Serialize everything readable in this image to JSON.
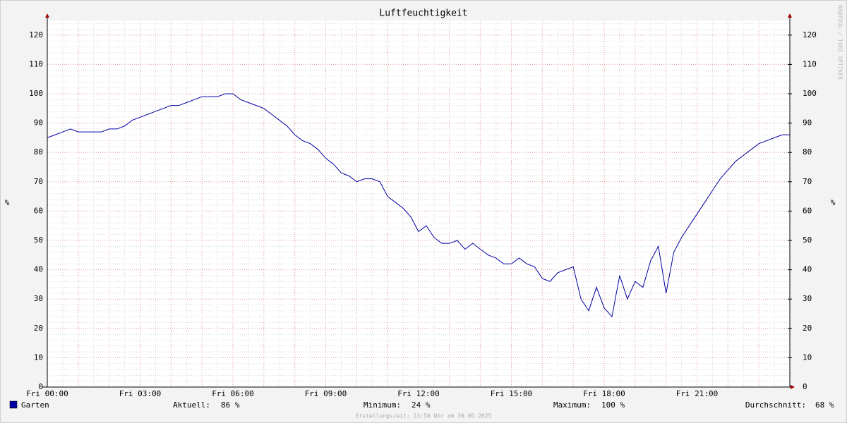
{
  "chart_data": {
    "type": "line",
    "title": "Luftfeuchtigkeit",
    "ylabel": "%",
    "y2label": "%",
    "watermark": "RRDTOOL / TOBI OETIKER",
    "footer": "Erstellungszeit: 23:58 Uhr am 30.05.2025",
    "xlim": [
      0,
      24
    ],
    "xticks": [
      {
        "value": 0,
        "label": "Fri 00:00"
      },
      {
        "value": 3,
        "label": "Fri 03:00"
      },
      {
        "value": 6,
        "label": "Fri 06:00"
      },
      {
        "value": 9,
        "label": "Fri 09:00"
      },
      {
        "value": 12,
        "label": "Fri 12:00"
      },
      {
        "value": 15,
        "label": "Fri 15:00"
      },
      {
        "value": 18,
        "label": "Fri 18:00"
      },
      {
        "value": 21,
        "label": "Fri 21:00"
      }
    ],
    "ylim": [
      0,
      125
    ],
    "yticks": [
      0,
      10,
      20,
      30,
      40,
      50,
      60,
      70,
      80,
      90,
      100,
      110,
      120
    ],
    "y2lim": [
      0,
      125
    ],
    "y2ticks": [
      0,
      10,
      20,
      30,
      40,
      50,
      60,
      70,
      80,
      90,
      100,
      110,
      120
    ],
    "grid": {
      "x_minor": 0.5,
      "x_major": 1,
      "y_minor": 2
    },
    "x": [
      0,
      0.25,
      0.5,
      0.75,
      1,
      1.25,
      1.5,
      1.75,
      2,
      2.25,
      2.5,
      2.75,
      3,
      3.25,
      3.5,
      3.75,
      4,
      4.25,
      4.5,
      4.75,
      5,
      5.25,
      5.5,
      5.75,
      6,
      6.25,
      6.5,
      6.75,
      7,
      7.25,
      7.5,
      7.75,
      8,
      8.25,
      8.5,
      8.75,
      9,
      9.25,
      9.5,
      9.75,
      10,
      10.25,
      10.5,
      10.75,
      11,
      11.25,
      11.5,
      11.75,
      12,
      12.25,
      12.5,
      12.75,
      13,
      13.25,
      13.5,
      13.75,
      14,
      14.25,
      14.5,
      14.75,
      15,
      15.25,
      15.5,
      15.75,
      16,
      16.25,
      16.5,
      16.75,
      17,
      17.25,
      17.5,
      17.75,
      18,
      18.25,
      18.5,
      18.75,
      19,
      19.25,
      19.5,
      19.75,
      20,
      20.25,
      20.5,
      20.75,
      21,
      21.25,
      21.5,
      21.75,
      22,
      22.25,
      22.5,
      22.75,
      23,
      23.25,
      23.5,
      23.75,
      24
    ],
    "series": [
      {
        "name": "Garten",
        "color": "#0000a0",
        "values": [
          85,
          86,
          87,
          88,
          87,
          87,
          87,
          87,
          88,
          88,
          89,
          91,
          92,
          93,
          94,
          95,
          96,
          96,
          97,
          98,
          99,
          99,
          99,
          100,
          100,
          98,
          97,
          96,
          95,
          93,
          91,
          89,
          86,
          84,
          83,
          81,
          78,
          76,
          73,
          72,
          70,
          71,
          71,
          70,
          65,
          63,
          61,
          58,
          53,
          55,
          51,
          49,
          49,
          50,
          47,
          49,
          47,
          45,
          44,
          42,
          42,
          44,
          42,
          41,
          37,
          36,
          39,
          40,
          41,
          30,
          26,
          34,
          27,
          24,
          38,
          30,
          36,
          34,
          43,
          48,
          32,
          46,
          51,
          55,
          59,
          63,
          67,
          71,
          74,
          77,
          79,
          81,
          83,
          84,
          85,
          86,
          86
        ]
      }
    ],
    "stats": [
      {
        "label": "Aktuell:",
        "value": "86 %"
      },
      {
        "label": "Minimum:",
        "value": "24 %"
      },
      {
        "label": "Maximum:",
        "value": "100 %"
      },
      {
        "label": "Durchschnitt:",
        "value": "68 %"
      }
    ]
  }
}
